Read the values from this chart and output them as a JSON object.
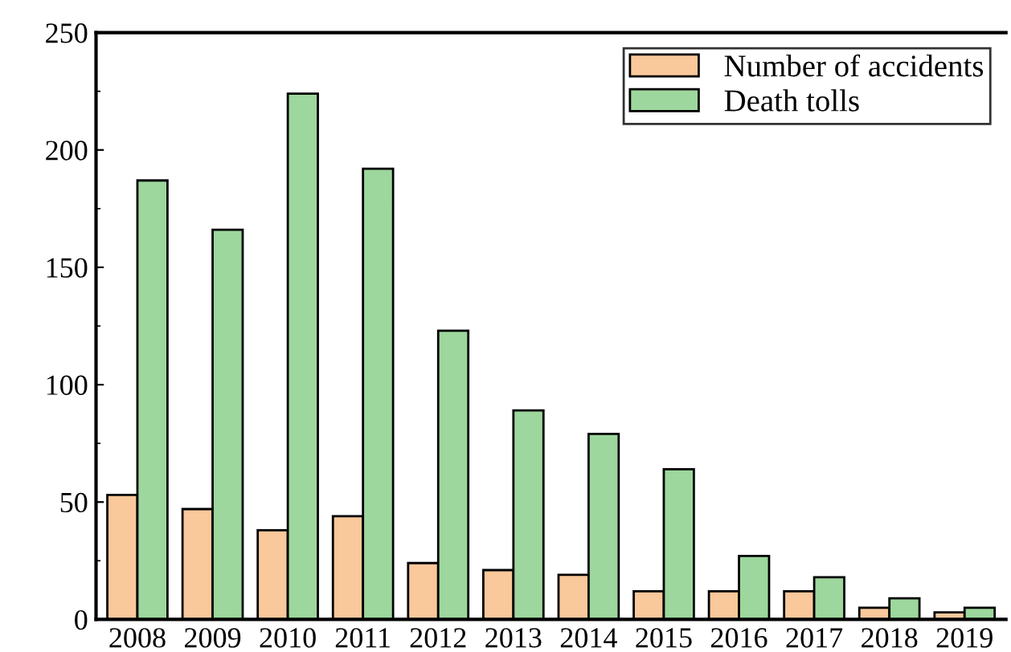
{
  "chart_data": {
    "type": "bar",
    "categories": [
      "2008",
      "2009",
      "2010",
      "2011",
      "2012",
      "2013",
      "2014",
      "2015",
      "2016",
      "2017",
      "2018",
      "2019"
    ],
    "series": [
      {
        "name": "Number of accidents",
        "color": "#f9c89b",
        "values": [
          53,
          47,
          38,
          44,
          24,
          21,
          19,
          12,
          12,
          12,
          5,
          3
        ]
      },
      {
        "name": "Death tolls",
        "color": "#9dd79d",
        "values": [
          187,
          166,
          224,
          192,
          123,
          89,
          79,
          64,
          27,
          18,
          9,
          5
        ]
      }
    ],
    "ylim": [
      0,
      250
    ],
    "yticks": [
      0,
      50,
      100,
      150,
      200,
      250
    ],
    "grid": false,
    "legend": "top right"
  }
}
